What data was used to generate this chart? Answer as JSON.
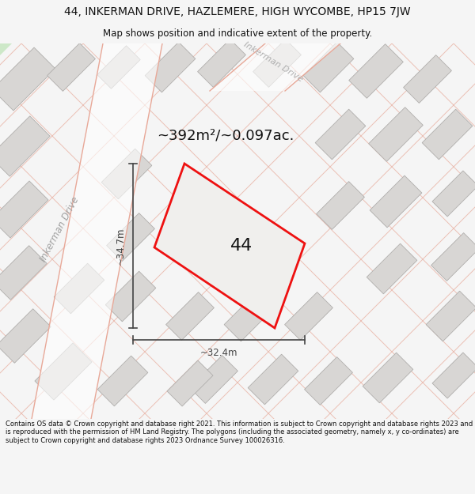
{
  "title_line1": "44, INKERMAN DRIVE, HAZLEMERE, HIGH WYCOMBE, HP15 7JW",
  "title_line2": "Map shows position and indicative extent of the property.",
  "area_text": "~392m²/~0.097ac.",
  "label_44": "44",
  "dim_height": "~34.7m",
  "dim_width": "~32.4m",
  "road_label_left": "Inkerman Drive",
  "road_label_top": "Inkerman Drive",
  "footer_text": "Contains OS data © Crown copyright and database right 2021. This information is subject to Crown copyright and database rights 2023 and is reproduced with the permission of HM Land Registry. The polygons (including the associated geometry, namely x, y co-ordinates) are subject to Crown copyright and database rights 2023 Ordnance Survey 100026316.",
  "bg_color": "#f5f5f5",
  "map_bg": "#eeeceb",
  "building_fill": "#d8d6d4",
  "building_stroke": "#b0aeac",
  "road_stroke": "#e8a898",
  "highlight_fill": "#f0efed",
  "highlight_stroke": "#ee1111",
  "dim_color": "#444444",
  "text_color": "#111111",
  "road_text_color": "#aaaaaa",
  "green_fill": "#cde8c8"
}
